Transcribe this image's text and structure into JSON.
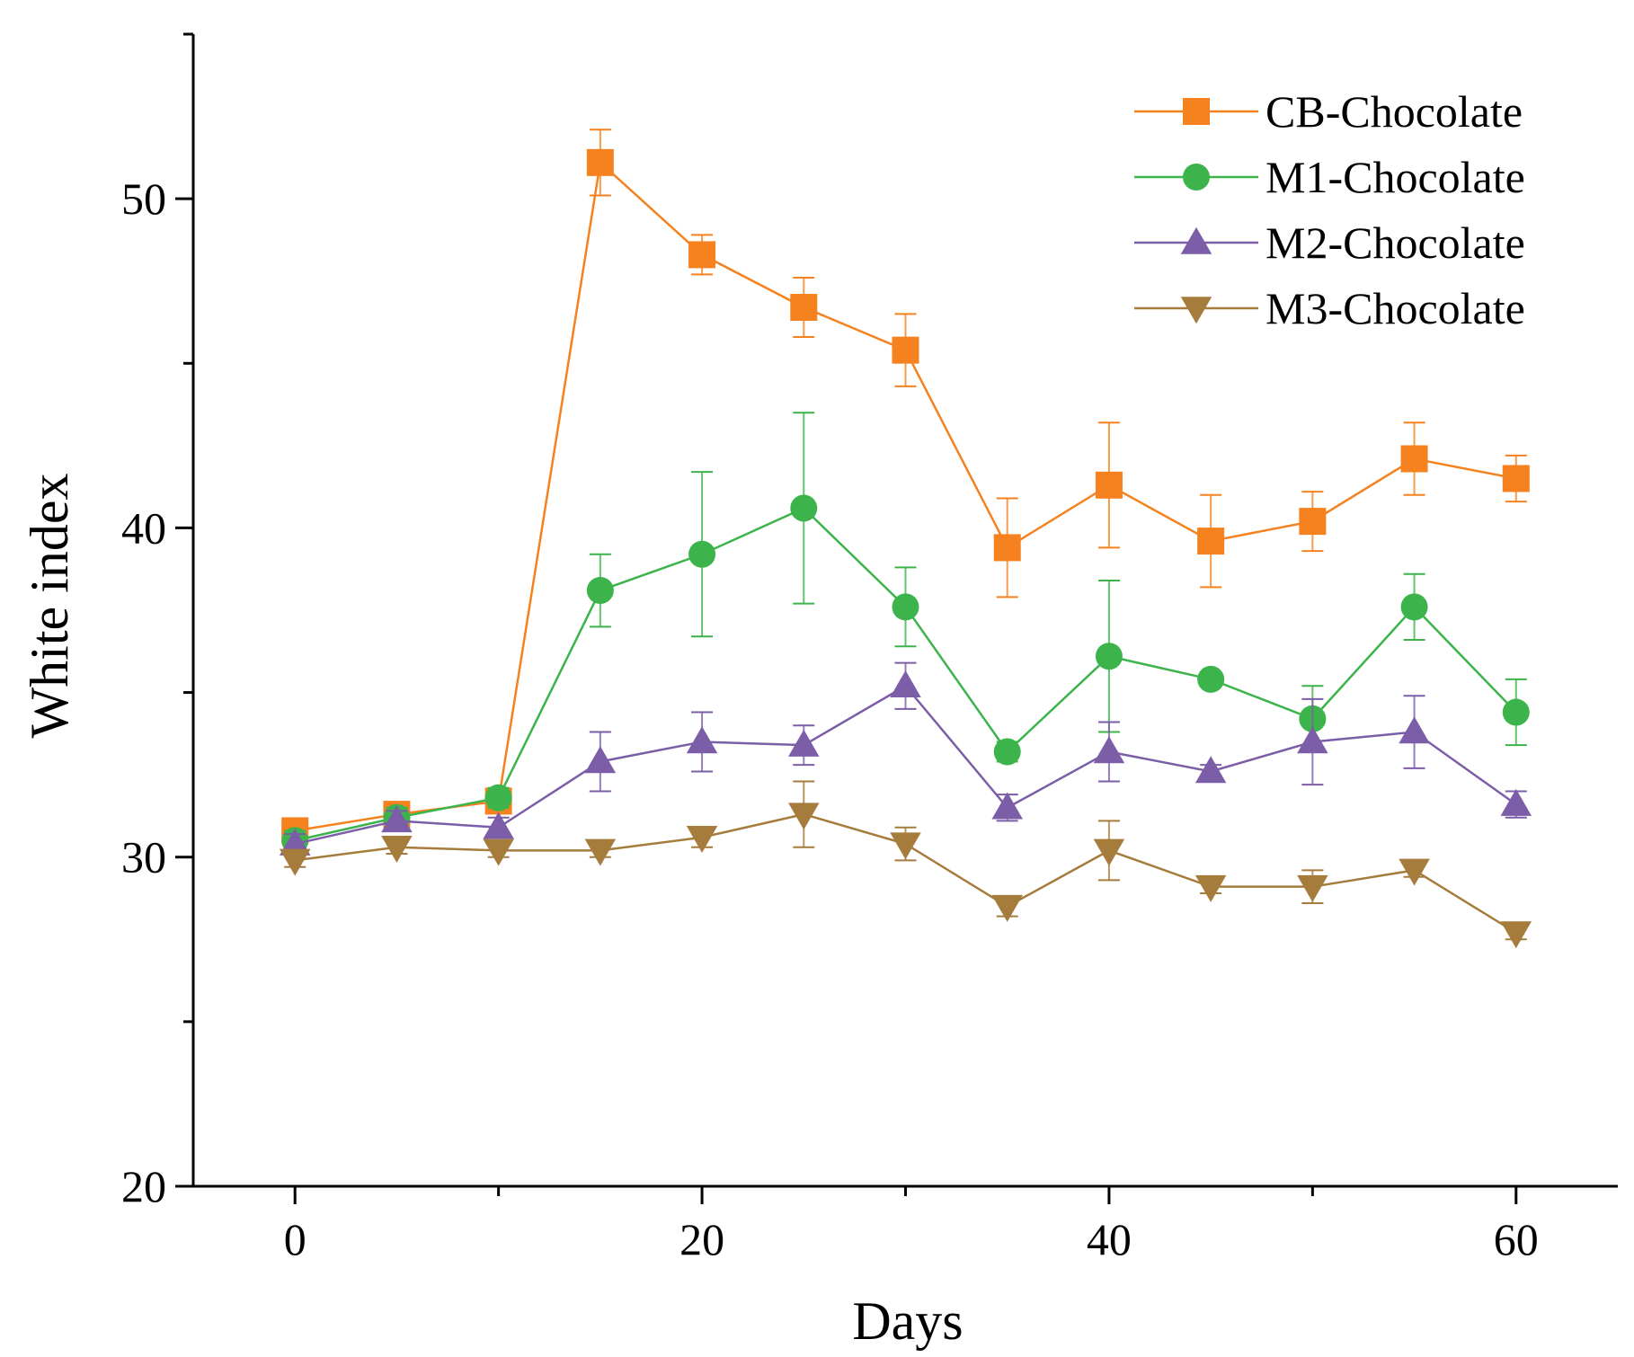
{
  "chart_data": {
    "type": "line",
    "xlabel": "Days",
    "ylabel": "White index",
    "xlim": [
      -5,
      65
    ],
    "ylim": [
      20,
      55
    ],
    "xticks": [
      0,
      20,
      40,
      60
    ],
    "xticks_minor": [
      10,
      30,
      50
    ],
    "yticks": [
      20,
      30,
      40,
      50
    ],
    "yticks_minor": [
      25,
      35,
      45,
      55
    ],
    "legend_position": "top-right",
    "x": [
      0,
      5,
      10,
      15,
      20,
      25,
      30,
      35,
      40,
      45,
      50,
      55,
      60
    ],
    "series": [
      {
        "name": "CB-Chocolate",
        "color": "#f5821f",
        "marker": "square",
        "values": [
          30.8,
          31.3,
          31.7,
          51.1,
          48.3,
          46.7,
          45.4,
          39.4,
          41.3,
          39.6,
          40.2,
          42.1,
          41.5
        ],
        "errors": [
          0.3,
          0.3,
          0.3,
          1.0,
          0.6,
          0.9,
          1.1,
          1.5,
          1.9,
          1.4,
          0.9,
          1.1,
          0.7
        ]
      },
      {
        "name": "M1-Chocolate",
        "color": "#3cb44b",
        "marker": "circle",
        "values": [
          30.5,
          31.2,
          31.8,
          38.1,
          39.2,
          40.6,
          37.6,
          33.2,
          36.1,
          35.4,
          34.2,
          37.6,
          34.4
        ],
        "errors": [
          0.3,
          0.3,
          0.3,
          1.1,
          2.5,
          2.9,
          1.2,
          0.3,
          2.3,
          0.2,
          1.0,
          1.0,
          1.0
        ]
      },
      {
        "name": "M2-Chocolate",
        "color": "#7b5ea7",
        "marker": "triangle-up",
        "values": [
          30.4,
          31.1,
          30.9,
          32.9,
          33.5,
          33.4,
          35.2,
          31.5,
          33.2,
          32.6,
          33.5,
          33.8,
          31.6
        ],
        "errors": [
          0.3,
          0.3,
          0.3,
          0.9,
          0.9,
          0.6,
          0.7,
          0.4,
          0.9,
          0.2,
          1.3,
          1.1,
          0.4
        ]
      },
      {
        "name": "M3-Chocolate",
        "color": "#a67c3d",
        "marker": "triangle-down",
        "values": [
          29.9,
          30.3,
          30.2,
          30.2,
          30.6,
          31.3,
          30.4,
          28.5,
          30.2,
          29.1,
          29.1,
          29.6,
          27.7
        ],
        "errors": [
          0.2,
          0.2,
          0.2,
          0.2,
          0.3,
          1.0,
          0.5,
          0.3,
          0.9,
          0.2,
          0.5,
          0.2,
          0.2
        ]
      }
    ]
  }
}
